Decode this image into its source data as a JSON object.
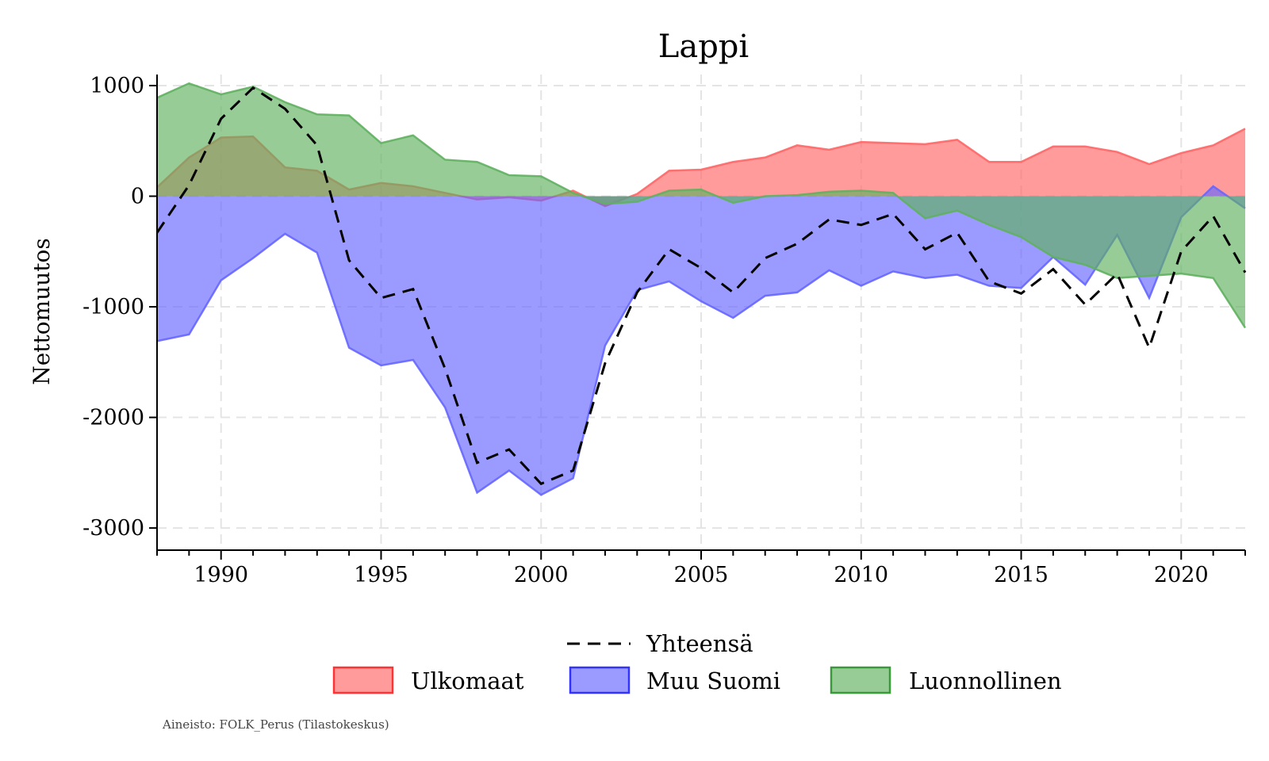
{
  "chart_data": {
    "type": "area",
    "title": "Lappi",
    "xlabel": "",
    "ylabel": "Nettomuutos",
    "xlim": [
      1988,
      2022
    ],
    "ylim": [
      -3200,
      1100
    ],
    "x_ticks": [
      1990,
      1995,
      2000,
      2005,
      2010,
      2015,
      2020
    ],
    "y_ticks": [
      1000,
      0,
      -1000,
      -2000,
      -3000
    ],
    "x_tick_labels": [
      "1990",
      "1995",
      "2000",
      "2005",
      "2010",
      "2015",
      "2020"
    ],
    "y_tick_labels": [
      "1000",
      "0",
      "-1000",
      "-2000",
      "-3000"
    ],
    "grid": true,
    "legend_position": "bottom",
    "x": [
      1988,
      1989,
      1990,
      1991,
      1992,
      1993,
      1994,
      1995,
      1996,
      1997,
      1998,
      1999,
      2000,
      2001,
      2002,
      2003,
      2004,
      2005,
      2006,
      2007,
      2008,
      2009,
      2010,
      2011,
      2012,
      2013,
      2014,
      2015,
      2016,
      2017,
      2018,
      2019,
      2020,
      2021,
      2022
    ],
    "series": [
      {
        "name": "Ulkomaat",
        "kind": "area",
        "color": "#ff6666",
        "values": [
          80,
          350,
          530,
          540,
          260,
          230,
          60,
          120,
          90,
          30,
          -30,
          -10,
          -40,
          50,
          -90,
          20,
          230,
          240,
          310,
          350,
          460,
          420,
          490,
          480,
          470,
          510,
          310,
          310,
          450,
          450,
          400,
          290,
          390,
          460,
          610
        ]
      },
      {
        "name": "Muu Suomi",
        "kind": "area",
        "color": "#6666ff",
        "values": [
          -1310,
          -1250,
          -760,
          -560,
          -340,
          -510,
          -1370,
          -1530,
          -1480,
          -1910,
          -2680,
          -2480,
          -2700,
          -2550,
          -1350,
          -850,
          -770,
          -950,
          -1100,
          -900,
          -870,
          -670,
          -810,
          -680,
          -740,
          -710,
          -810,
          -830,
          -550,
          -800,
          -350,
          -920,
          -190,
          90,
          -110
        ]
      },
      {
        "name": "Luonnollinen",
        "kind": "area",
        "color": "#60b060",
        "values": [
          890,
          1020,
          920,
          990,
          850,
          740,
          730,
          480,
          550,
          330,
          310,
          190,
          180,
          30,
          -70,
          -50,
          50,
          60,
          -60,
          0,
          10,
          40,
          50,
          30,
          -200,
          -130,
          -260,
          -370,
          -550,
          -620,
          -740,
          -720,
          -700,
          -740,
          -1190
        ]
      },
      {
        "name": "Yhteensä",
        "kind": "line",
        "color": "#000000",
        "values": [
          -330,
          100,
          700,
          980,
          790,
          460,
          -580,
          -920,
          -840,
          -1560,
          -2410,
          -2290,
          -2600,
          -2480,
          -1510,
          -870,
          -480,
          -650,
          -870,
          -560,
          -430,
          -210,
          -260,
          -160,
          -480,
          -330,
          -770,
          -880,
          -660,
          -980,
          -700,
          -1370,
          -500,
          -180,
          -690
        ]
      }
    ]
  },
  "legend": {
    "line_label": "Yhteensä",
    "area_labels": [
      "Ulkomaat",
      "Muu Suomi",
      "Luonnollinen"
    ]
  },
  "source_note": "Aineisto: FOLK_Perus (Tilastokeskus)"
}
